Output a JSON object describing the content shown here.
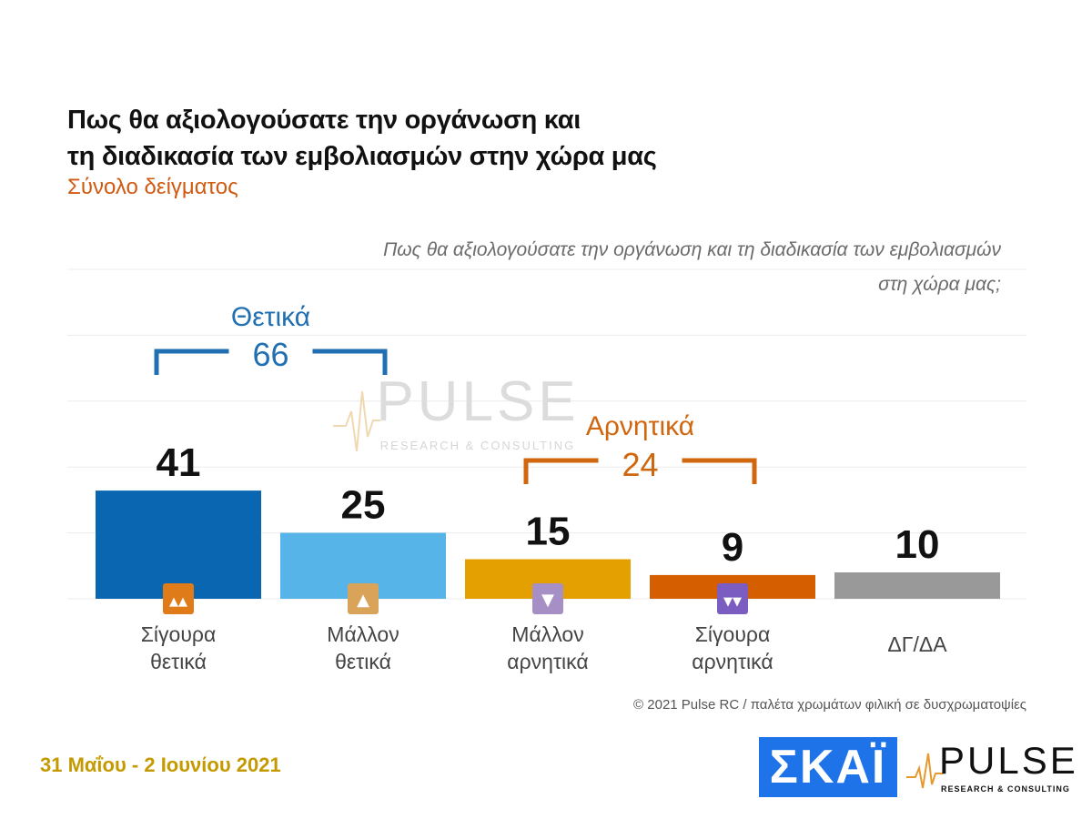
{
  "header": {
    "title_line1": "Πως θα αξιολογούσατε την οργάνωση και",
    "title_line2": "τη διαδικασία των εμβολιασμών στην χώρα μας",
    "subtitle": "Σύνολο δείγματος"
  },
  "question": {
    "line1": "Πως θα αξιολογούσατε την οργάνωση και τη διαδικασία των εμβολιασμών",
    "line2": "στη χώρα μας;"
  },
  "footer": {
    "date": "31 Μαΐου - 2 Ιουνίου 2021",
    "copyright": "© 2021 Pulse RC  /  παλέτα χρωμάτων φιλική σε δυσχρωματοψίες",
    "skai_logo_text": "ΣΚΑΪ",
    "pulse_logo_text": "PULSE",
    "pulse_logo_sub": "RESEARCH & CONSULTING"
  },
  "watermark": {
    "text": "PULSE",
    "sub": "RESEARCH & CONSULTING"
  },
  "colors": {
    "positive_group": "#1f6fb2",
    "negative_group": "#d0670f",
    "bar_sure_positive": "#0a66b0",
    "bar_rather_positive": "#56b4e9",
    "bar_rather_negative": "#e3a000",
    "bar_sure_negative": "#d55e00",
    "bar_dk": "#999999"
  },
  "chart_data": {
    "type": "bar",
    "categories": [
      [
        "Σίγουρα",
        "θετικά"
      ],
      [
        "Μάλλον",
        "θετικά"
      ],
      [
        "Μάλλον",
        "αρνητικά"
      ],
      [
        "Σίγουρα",
        "αρνητικά"
      ],
      [
        "ΔΓ/ΔΑ"
      ]
    ],
    "values": [
      41,
      25,
      15,
      9,
      10
    ],
    "bar_colors": [
      "#0a66b0",
      "#56b4e9",
      "#e3a000",
      "#d55e00",
      "#999999"
    ],
    "icons": [
      "double-thumbs-up-icon",
      "thumb-up-icon",
      "thumb-down-icon",
      "double-thumbs-down-icon",
      ""
    ],
    "icon_colors": [
      "#e07b1a",
      "#d9a35a",
      "#a58fc4",
      "#7b5cc0",
      ""
    ],
    "groups": [
      {
        "label": "Θετικά",
        "value": 66,
        "from": 0,
        "to": 1,
        "color": "#1f6fb2"
      },
      {
        "label": "Αρνητικά",
        "value": 24,
        "from": 2,
        "to": 3,
        "color": "#d0670f"
      }
    ],
    "ylim": [
      0,
      60
    ],
    "grid": true
  }
}
